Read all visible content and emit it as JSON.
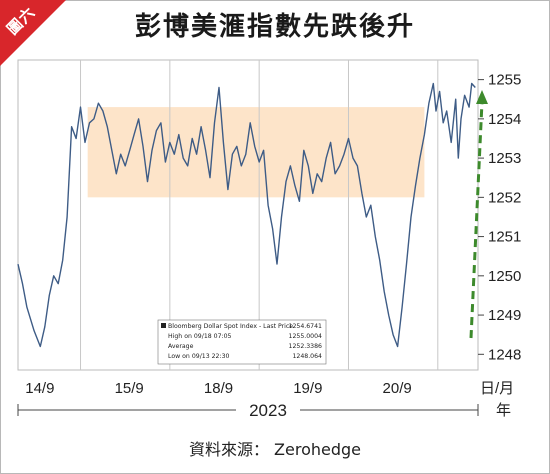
{
  "badge": "圖六",
  "title": "彭博美滙指數先跌後升",
  "source": "資料來源： Zerohedge",
  "year_label": "2023",
  "x_unit_label": [
    "日/月",
    "年"
  ],
  "colors": {
    "line": "#3e5c86",
    "band": "#fde2c4",
    "arrow": "#3d8a2c",
    "badge": "#d8262b"
  },
  "chart_data": {
    "type": "line",
    "title": "彭博美滙指數先跌後升",
    "xlabel": "日/月",
    "ylabel": "",
    "x_ticks": [
      "14/9",
      "15/9",
      "18/9",
      "19/9",
      "20/9"
    ],
    "y_ticks": [
      1248,
      1249,
      1250,
      1251,
      1252,
      1253,
      1254,
      1255
    ],
    "ylim": [
      1247.6,
      1255.5
    ],
    "grid": true,
    "highlight_band": [
      1252.0,
      1254.3
    ],
    "series": [
      {
        "name": "Bloomberg Dollar Spot Index - Last Price",
        "x": [
          0,
          0.05,
          0.1,
          0.18,
          0.25,
          0.3,
          0.35,
          0.4,
          0.45,
          0.5,
          0.55,
          0.6,
          0.65,
          0.7,
          0.75,
          0.8,
          0.85,
          0.9,
          0.95,
          1.0,
          1.05,
          1.1,
          1.15,
          1.2,
          1.25,
          1.3,
          1.35,
          1.4,
          1.45,
          1.5,
          1.55,
          1.6,
          1.65,
          1.7,
          1.75,
          1.8,
          1.85,
          1.9,
          1.95,
          2.0,
          2.05,
          2.1,
          2.15,
          2.2,
          2.25,
          2.3,
          2.35,
          2.4,
          2.45,
          2.5,
          2.55,
          2.6,
          2.65,
          2.7,
          2.75,
          2.8,
          2.85,
          2.9,
          2.95,
          3.0,
          3.05,
          3.1,
          3.15,
          3.2,
          3.25,
          3.3,
          3.35,
          3.4,
          3.45,
          3.5,
          3.55,
          3.6,
          3.65,
          3.7,
          3.75,
          3.8,
          3.85,
          3.9,
          3.95,
          4.0,
          4.05,
          4.1,
          4.15,
          4.2,
          4.25,
          4.3,
          4.35,
          4.4,
          4.45,
          4.5,
          4.55,
          4.6,
          4.65,
          4.68,
          4.72,
          4.76,
          4.8,
          4.85,
          4.9,
          4.93,
          4.96,
          5.0,
          5.05,
          5.08,
          5.12
        ],
        "values": [
          1250.3,
          1249.8,
          1249.2,
          1248.6,
          1248.2,
          1248.7,
          1249.5,
          1250.0,
          1249.8,
          1250.4,
          1251.5,
          1253.8,
          1253.5,
          1254.3,
          1253.4,
          1253.9,
          1254.0,
          1254.4,
          1254.2,
          1253.8,
          1253.2,
          1252.6,
          1253.1,
          1252.8,
          1253.2,
          1253.6,
          1254.0,
          1253.3,
          1252.4,
          1253.2,
          1253.7,
          1253.9,
          1252.9,
          1253.4,
          1253.1,
          1253.6,
          1253.0,
          1252.8,
          1253.5,
          1253.1,
          1253.8,
          1253.2,
          1252.5,
          1253.9,
          1254.8,
          1253.4,
          1252.2,
          1253.1,
          1253.3,
          1252.8,
          1253.1,
          1253.9,
          1253.3,
          1252.9,
          1253.2,
          1251.8,
          1251.2,
          1250.3,
          1251.5,
          1252.4,
          1252.8,
          1252.3,
          1251.9,
          1253.2,
          1252.8,
          1252.1,
          1252.6,
          1252.4,
          1253.0,
          1253.4,
          1252.6,
          1252.8,
          1253.1,
          1253.5,
          1253.0,
          1252.8,
          1252.1,
          1251.5,
          1251.8,
          1251.0,
          1250.4,
          1249.6,
          1249.0,
          1248.5,
          1248.2,
          1249.2,
          1250.3,
          1251.5,
          1252.3,
          1253.0,
          1253.6,
          1254.4,
          1254.9,
          1254.2,
          1254.7,
          1253.9,
          1254.2,
          1253.4,
          1254.5,
          1253.0,
          1254.0,
          1254.6,
          1254.3,
          1254.9,
          1254.8
        ]
      }
    ]
  },
  "legend": {
    "rows": [
      {
        "label": "Bloomberg Dollar Spot Index - Last Price",
        "value": "1254.6741"
      },
      {
        "label": "High on 09/18 07:05",
        "value": "1255.0004"
      },
      {
        "label": "Average",
        "value": "1252.3386"
      },
      {
        "label": "Low on 09/13 22:30",
        "value": "1248.064"
      }
    ]
  }
}
